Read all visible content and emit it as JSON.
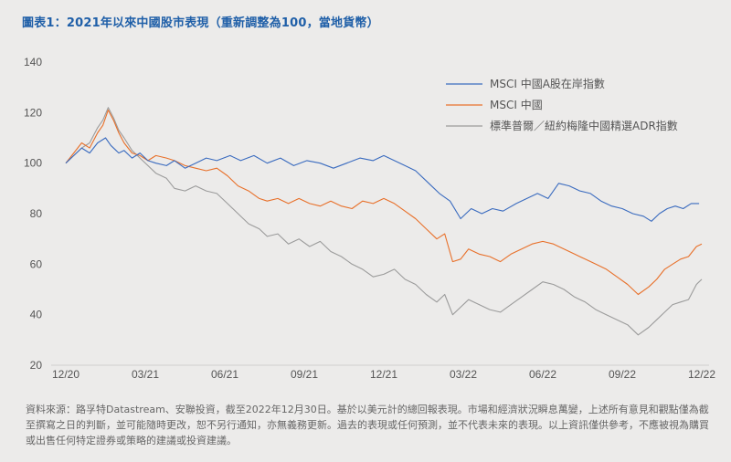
{
  "title": "圖表1：2021年以來中國股市表現（重新調整為100，當地貨幣）",
  "footnote": "資料來源：路孚特Datastream、安聯投資，截至2022年12月30日。基於以美元計的總回報表現。市場和經濟狀況瞬息萬變，上述所有意見和觀點僅為截至撰寫之日的判斷，並可能隨時更改，恕不另行通知，亦無義務更新。過去的表現或任何預測，並不代表未來的表現。以上資訊僅供參考，不應被視為購買或出售任何特定證券或策略的建議或投資建議。",
  "chart_data": {
    "type": "line",
    "x_tick_labels": [
      "12/20",
      "03/21",
      "06/21",
      "09/21",
      "12/21",
      "03/22",
      "06/22",
      "09/22",
      "12/22"
    ],
    "y_ticks": [
      20,
      40,
      60,
      80,
      100,
      120,
      140
    ],
    "ylim": [
      20,
      140
    ],
    "x_unit": "month index (0 = end Dec 2020, 24 = end Dec 2022)",
    "xlim": [
      0,
      24
    ],
    "legend_position": "top-right",
    "series": [
      {
        "name": "MSCI 中國A股在岸指數",
        "color": "#3a6bbf",
        "points": [
          [
            0,
            100
          ],
          [
            0.3,
            103
          ],
          [
            0.6,
            106
          ],
          [
            0.9,
            104
          ],
          [
            1.2,
            108
          ],
          [
            1.5,
            110
          ],
          [
            1.7,
            107
          ],
          [
            2.0,
            104
          ],
          [
            2.2,
            105
          ],
          [
            2.5,
            102
          ],
          [
            2.8,
            104
          ],
          [
            3.1,
            101
          ],
          [
            3.4,
            100
          ],
          [
            3.8,
            99
          ],
          [
            4.1,
            101
          ],
          [
            4.5,
            98
          ],
          [
            4.9,
            100
          ],
          [
            5.3,
            102
          ],
          [
            5.7,
            101
          ],
          [
            6.2,
            103
          ],
          [
            6.6,
            101
          ],
          [
            7.1,
            103
          ],
          [
            7.6,
            100
          ],
          [
            8.1,
            102
          ],
          [
            8.6,
            99
          ],
          [
            9.1,
            101
          ],
          [
            9.6,
            100
          ],
          [
            10.1,
            98
          ],
          [
            10.6,
            100
          ],
          [
            11.1,
            102
          ],
          [
            11.6,
            101
          ],
          [
            12.0,
            103
          ],
          [
            12.4,
            101
          ],
          [
            12.8,
            99
          ],
          [
            13.2,
            97
          ],
          [
            13.7,
            92
          ],
          [
            14.1,
            88
          ],
          [
            14.5,
            85
          ],
          [
            14.9,
            78
          ],
          [
            15.3,
            82
          ],
          [
            15.7,
            80
          ],
          [
            16.1,
            82
          ],
          [
            16.5,
            81
          ],
          [
            17.0,
            84
          ],
          [
            17.4,
            86
          ],
          [
            17.8,
            88
          ],
          [
            18.2,
            86
          ],
          [
            18.6,
            92
          ],
          [
            19.0,
            91
          ],
          [
            19.4,
            89
          ],
          [
            19.8,
            88
          ],
          [
            20.2,
            85
          ],
          [
            20.6,
            83
          ],
          [
            21.0,
            82
          ],
          [
            21.4,
            80
          ],
          [
            21.8,
            79
          ],
          [
            22.1,
            77
          ],
          [
            22.4,
            80
          ],
          [
            22.7,
            82
          ],
          [
            23.0,
            83
          ],
          [
            23.3,
            82
          ],
          [
            23.6,
            84
          ],
          [
            23.9,
            84
          ]
        ]
      },
      {
        "name": "MSCI 中國",
        "color": "#e8702a",
        "points": [
          [
            0,
            100
          ],
          [
            0.3,
            104
          ],
          [
            0.6,
            108
          ],
          [
            0.9,
            106
          ],
          [
            1.2,
            112
          ],
          [
            1.4,
            115
          ],
          [
            1.6,
            121
          ],
          [
            1.8,
            117
          ],
          [
            2.0,
            112
          ],
          [
            2.2,
            108
          ],
          [
            2.5,
            104
          ],
          [
            2.8,
            103
          ],
          [
            3.1,
            101
          ],
          [
            3.4,
            103
          ],
          [
            3.8,
            102
          ],
          [
            4.1,
            101
          ],
          [
            4.5,
            99
          ],
          [
            4.9,
            98
          ],
          [
            5.3,
            97
          ],
          [
            5.7,
            98
          ],
          [
            6.1,
            95
          ],
          [
            6.5,
            91
          ],
          [
            6.9,
            89
          ],
          [
            7.3,
            86
          ],
          [
            7.6,
            85
          ],
          [
            8.0,
            86
          ],
          [
            8.4,
            84
          ],
          [
            8.8,
            86
          ],
          [
            9.2,
            84
          ],
          [
            9.6,
            83
          ],
          [
            10.0,
            85
          ],
          [
            10.4,
            83
          ],
          [
            10.8,
            82
          ],
          [
            11.2,
            85
          ],
          [
            11.6,
            84
          ],
          [
            12.0,
            86
          ],
          [
            12.4,
            84
          ],
          [
            12.8,
            81
          ],
          [
            13.2,
            78
          ],
          [
            13.6,
            74
          ],
          [
            14.0,
            70
          ],
          [
            14.3,
            72
          ],
          [
            14.6,
            61
          ],
          [
            14.9,
            62
          ],
          [
            15.2,
            66
          ],
          [
            15.6,
            64
          ],
          [
            16.0,
            63
          ],
          [
            16.4,
            61
          ],
          [
            16.8,
            64
          ],
          [
            17.2,
            66
          ],
          [
            17.6,
            68
          ],
          [
            18.0,
            69
          ],
          [
            18.4,
            68
          ],
          [
            18.8,
            66
          ],
          [
            19.2,
            64
          ],
          [
            19.6,
            62
          ],
          [
            20.0,
            60
          ],
          [
            20.4,
            58
          ],
          [
            20.8,
            55
          ],
          [
            21.2,
            52
          ],
          [
            21.6,
            48
          ],
          [
            22.0,
            51
          ],
          [
            22.3,
            54
          ],
          [
            22.6,
            58
          ],
          [
            22.9,
            60
          ],
          [
            23.2,
            62
          ],
          [
            23.5,
            63
          ],
          [
            23.8,
            67
          ],
          [
            24.0,
            68
          ]
        ]
      },
      {
        "name": "標準普爾／紐約梅隆中國精選ADR指數",
        "color": "#9b9b9b",
        "points": [
          [
            0,
            100
          ],
          [
            0.3,
            103
          ],
          [
            0.6,
            106
          ],
          [
            0.9,
            108
          ],
          [
            1.2,
            114
          ],
          [
            1.4,
            117
          ],
          [
            1.6,
            122
          ],
          [
            1.8,
            118
          ],
          [
            2.0,
            113
          ],
          [
            2.2,
            110
          ],
          [
            2.5,
            105
          ],
          [
            2.8,
            102
          ],
          [
            3.1,
            99
          ],
          [
            3.4,
            96
          ],
          [
            3.8,
            94
          ],
          [
            4.1,
            90
          ],
          [
            4.5,
            89
          ],
          [
            4.9,
            91
          ],
          [
            5.3,
            89
          ],
          [
            5.7,
            88
          ],
          [
            6.1,
            84
          ],
          [
            6.5,
            80
          ],
          [
            6.9,
            76
          ],
          [
            7.3,
            74
          ],
          [
            7.6,
            71
          ],
          [
            8.0,
            72
          ],
          [
            8.4,
            68
          ],
          [
            8.8,
            70
          ],
          [
            9.2,
            67
          ],
          [
            9.6,
            69
          ],
          [
            10.0,
            65
          ],
          [
            10.4,
            63
          ],
          [
            10.8,
            60
          ],
          [
            11.2,
            58
          ],
          [
            11.6,
            55
          ],
          [
            12.0,
            56
          ],
          [
            12.4,
            58
          ],
          [
            12.8,
            54
          ],
          [
            13.2,
            52
          ],
          [
            13.6,
            48
          ],
          [
            14.0,
            45
          ],
          [
            14.3,
            48
          ],
          [
            14.6,
            40
          ],
          [
            14.9,
            43
          ],
          [
            15.2,
            46
          ],
          [
            15.6,
            44
          ],
          [
            16.0,
            42
          ],
          [
            16.4,
            41
          ],
          [
            16.8,
            44
          ],
          [
            17.2,
            47
          ],
          [
            17.6,
            50
          ],
          [
            18.0,
            53
          ],
          [
            18.4,
            52
          ],
          [
            18.8,
            50
          ],
          [
            19.2,
            47
          ],
          [
            19.6,
            45
          ],
          [
            20.0,
            42
          ],
          [
            20.4,
            40
          ],
          [
            20.8,
            38
          ],
          [
            21.2,
            36
          ],
          [
            21.6,
            32
          ],
          [
            22.0,
            35
          ],
          [
            22.3,
            38
          ],
          [
            22.6,
            41
          ],
          [
            22.9,
            44
          ],
          [
            23.2,
            45
          ],
          [
            23.5,
            46
          ],
          [
            23.8,
            52
          ],
          [
            24.0,
            54
          ]
        ]
      }
    ]
  }
}
